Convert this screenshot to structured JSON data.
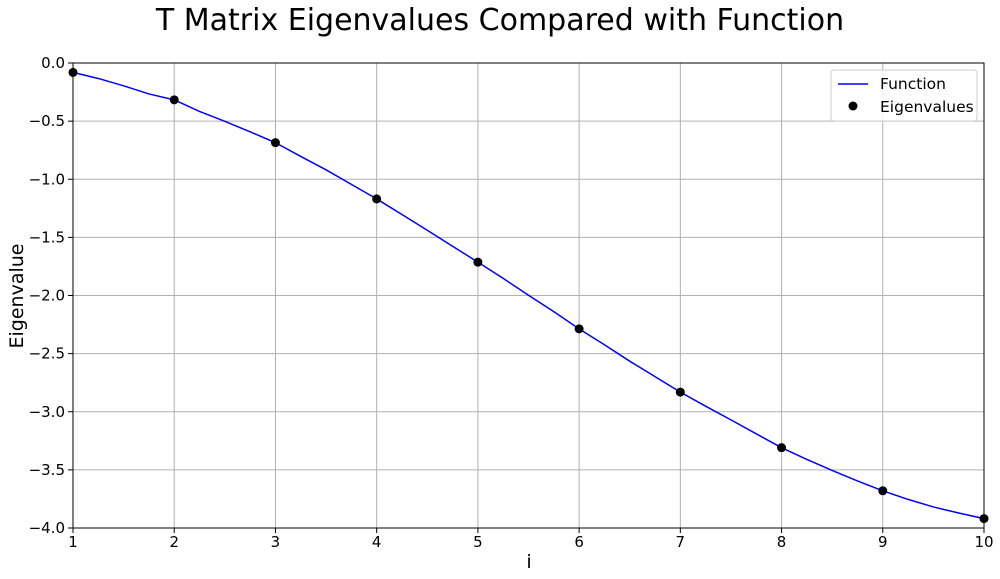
{
  "chart_data": {
    "type": "line",
    "title": "T Matrix Eigenvalues Compared with Function",
    "xlabel": "i",
    "ylabel": "Eigenvalue",
    "xlim": [
      1,
      10
    ],
    "ylim": [
      -4.0,
      0.0
    ],
    "x_ticks": [
      "1",
      "2",
      "3",
      "4",
      "5",
      "6",
      "7",
      "8",
      "9",
      "10"
    ],
    "y_ticks": [
      "0.0",
      "−0.5",
      "−1.0",
      "−1.5",
      "−2.0",
      "−2.5",
      "−3.0",
      "−3.5",
      "−4.0"
    ],
    "grid": true,
    "legend_position": "top-right",
    "series": [
      {
        "name": "Function",
        "kind": "line",
        "color": "#0000ff",
        "x": [
          1,
          1.25,
          1.5,
          1.75,
          2,
          2.25,
          2.5,
          2.75,
          3,
          3.25,
          3.5,
          3.75,
          4,
          4.25,
          4.5,
          4.75,
          5,
          5.25,
          5.5,
          5.75,
          6,
          6.25,
          6.5,
          6.75,
          7,
          7.25,
          7.5,
          7.75,
          8,
          8.25,
          8.5,
          8.75,
          9,
          9.25,
          9.5,
          9.75,
          10
        ],
        "y": [
          -0.081,
          -0.133,
          -0.196,
          -0.266,
          -0.317,
          -0.417,
          -0.502,
          -0.592,
          -0.685,
          -0.804,
          -0.919,
          -1.044,
          -1.169,
          -1.303,
          -1.439,
          -1.576,
          -1.713,
          -1.853,
          -1.998,
          -2.139,
          -2.287,
          -2.424,
          -2.565,
          -2.698,
          -2.831,
          -2.952,
          -3.07,
          -3.19,
          -3.309,
          -3.41,
          -3.505,
          -3.595,
          -3.68,
          -3.754,
          -3.819,
          -3.871,
          -3.919
        ]
      },
      {
        "name": "Eigenvalues",
        "kind": "scatter",
        "color": "#000000",
        "x": [
          1,
          2,
          3,
          4,
          5,
          6,
          7,
          8,
          9,
          10
        ],
        "y": [
          -0.081,
          -0.317,
          -0.685,
          -1.169,
          -1.713,
          -2.287,
          -2.831,
          -3.309,
          -3.68,
          -3.919
        ]
      }
    ]
  }
}
